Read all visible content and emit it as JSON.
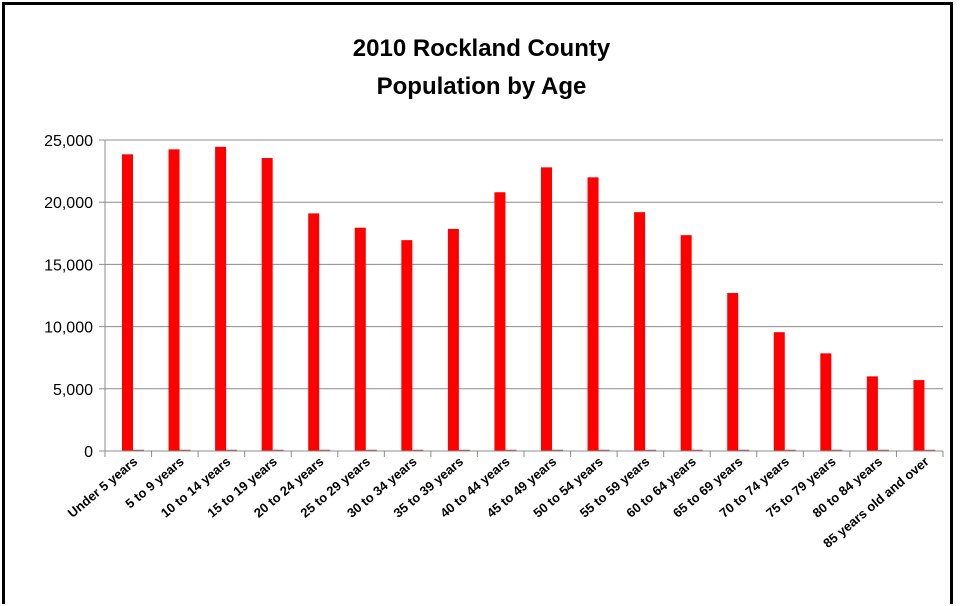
{
  "chart_data": {
    "type": "bar",
    "title_lines": [
      "2010 Rockland County",
      "Population by Age"
    ],
    "xlabel": "",
    "ylabel": "",
    "ylim": [
      0,
      25000
    ],
    "yticks": [
      0,
      5000,
      10000,
      15000,
      20000,
      25000
    ],
    "ytick_labels": [
      "0",
      "5,000",
      "10,000",
      "15,000",
      "20,000",
      "25,000"
    ],
    "grid": true,
    "bar_color": "#ff0000",
    "categories": [
      "Under 5 years",
      "5 to 9 years",
      "10 to 14 years",
      "15 to 19 years",
      "20 to 24 years",
      "25 to 29 years",
      "30 to 34 years",
      "35 to 39 years",
      "40 to 44 years",
      "45 to 49 years",
      "50 to 54 years",
      "55 to 59 years",
      "60 to 64 years",
      "65 to 69 years",
      "70 to 74 years",
      "75 to 79 years",
      "80 to 84 years",
      "85 years old and over"
    ],
    "series": [
      {
        "values": [
          23850,
          24250,
          24450,
          23550,
          19100,
          17950,
          16950,
          17850,
          20800,
          22800,
          22000,
          19200,
          17350,
          12700,
          9550,
          7850,
          6000,
          5700
        ]
      },
      {
        "values": [
          100,
          100,
          100,
          100,
          100,
          100,
          100,
          100,
          100,
          100,
          100,
          100,
          100,
          100,
          100,
          100,
          100,
          100
        ]
      }
    ]
  }
}
